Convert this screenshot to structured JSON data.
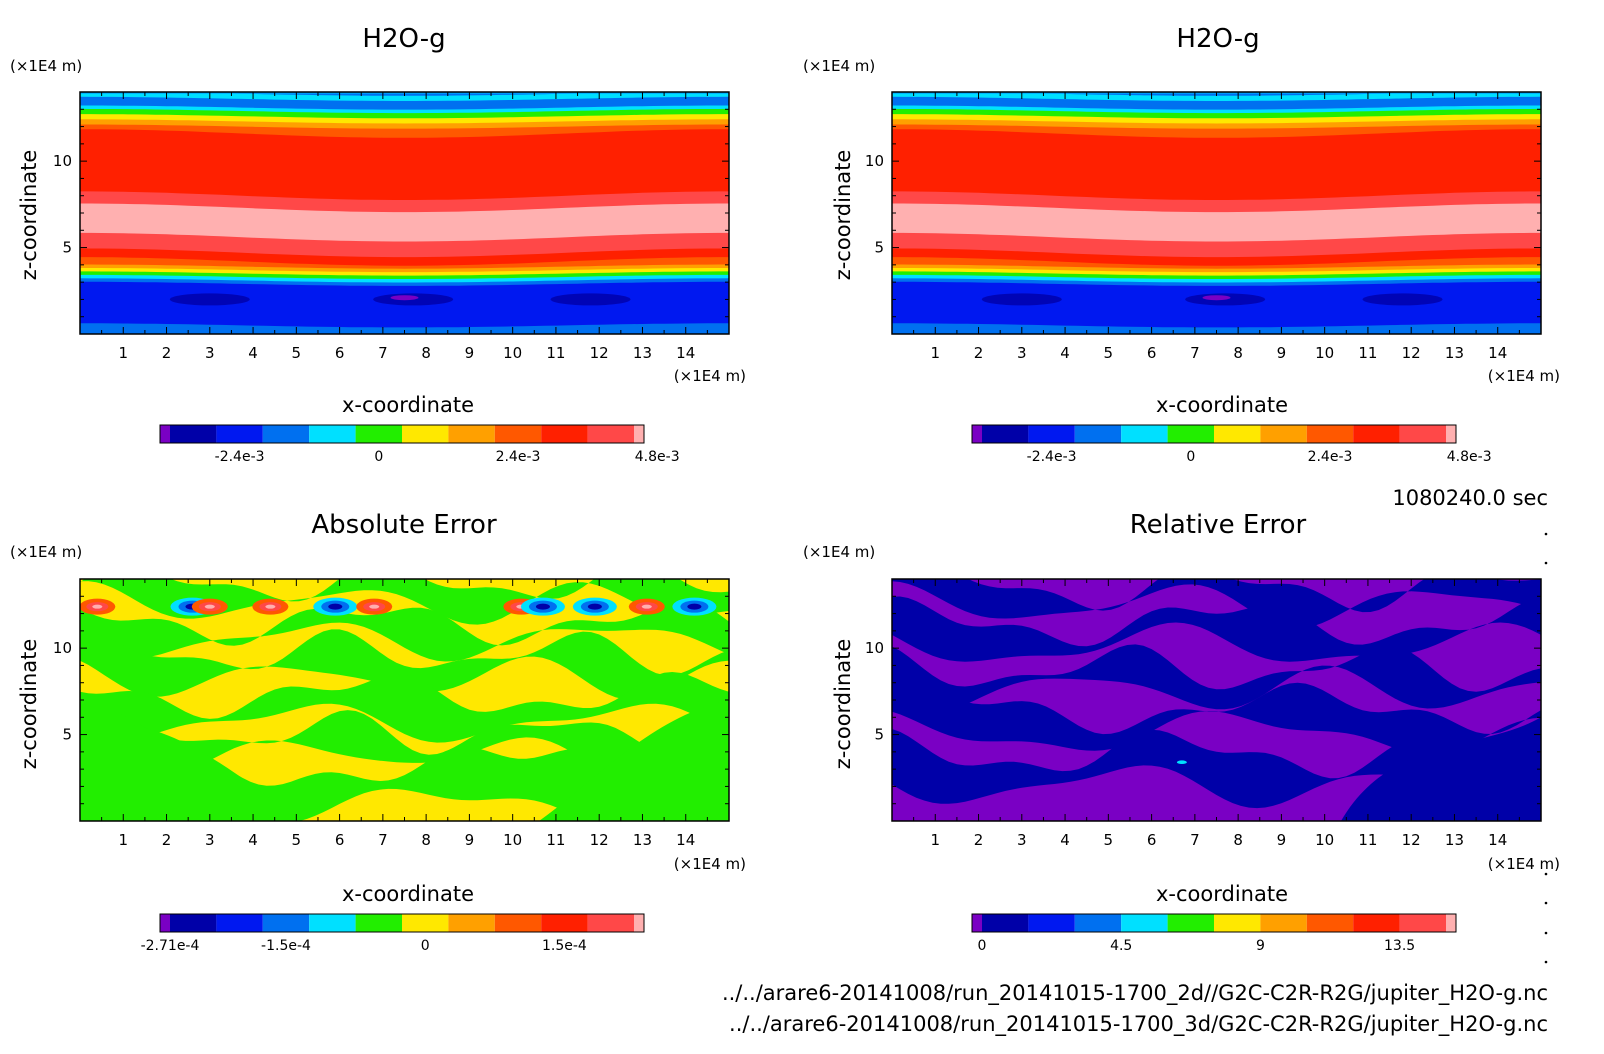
{
  "chart_data": [
    {
      "type": "heatmap",
      "title": "H2O-g",
      "xlabel": "x-coordinate",
      "ylabel": "z-coordinate",
      "x_unit": "(×1E4 m)",
      "y_unit": "(×1E4 m)",
      "xlim": [
        0,
        15
      ],
      "ylim": [
        0,
        14
      ],
      "x_ticks": [
        1,
        2,
        3,
        4,
        5,
        6,
        7,
        8,
        9,
        10,
        11,
        12,
        13,
        14
      ],
      "y_ticks": [
        5,
        10
      ],
      "pattern": "layers",
      "colorbar_ticks": [
        "-2.4e-3",
        "0",
        "2.4e-3",
        "4.8e-3"
      ],
      "colorbar_tick_pos": [
        1.5,
        4.5,
        7.5,
        10.5
      ]
    },
    {
      "type": "heatmap",
      "title": "H2O-g",
      "xlabel": "x-coordinate",
      "ylabel": "z-coordinate",
      "x_unit": "(×1E4 m)",
      "y_unit": "(×1E4 m)",
      "xlim": [
        0,
        15
      ],
      "ylim": [
        0,
        14
      ],
      "x_ticks": [
        1,
        2,
        3,
        4,
        5,
        6,
        7,
        8,
        9,
        10,
        11,
        12,
        13,
        14
      ],
      "y_ticks": [
        5,
        10
      ],
      "pattern": "layers",
      "colorbar_ticks": [
        "-2.4e-3",
        "0",
        "2.4e-3",
        "4.8e-3"
      ],
      "colorbar_tick_pos": [
        1.5,
        4.5,
        7.5,
        10.5
      ]
    },
    {
      "type": "heatmap",
      "title": "Absolute Error",
      "xlabel": "x-coordinate",
      "ylabel": "z-coordinate",
      "x_unit": "(×1E4 m)",
      "y_unit": "(×1E4 m)",
      "xlim": [
        0,
        15
      ],
      "ylim": [
        0,
        14
      ],
      "x_ticks": [
        1,
        2,
        3,
        4,
        5,
        6,
        7,
        8,
        9,
        10,
        11,
        12,
        13,
        14
      ],
      "y_ticks": [
        5,
        10
      ],
      "pattern": "abs_error",
      "colorbar_ticks": [
        "-2.71e-4",
        "-1.5e-4",
        "0",
        "1.5e-4"
      ],
      "colorbar_tick_pos": [
        0,
        2.5,
        5.5,
        8.5
      ]
    },
    {
      "type": "heatmap",
      "title": "Relative Error",
      "xlabel": "x-coordinate",
      "ylabel": "z-coordinate",
      "x_unit": "(×1E4 m)",
      "y_unit": "(×1E4 m)",
      "xlim": [
        0,
        15
      ],
      "ylim": [
        0,
        14
      ],
      "x_ticks": [
        1,
        2,
        3,
        4,
        5,
        6,
        7,
        8,
        9,
        10,
        11,
        12,
        13,
        14
      ],
      "y_ticks": [
        5,
        10
      ],
      "pattern": "rel_error",
      "colorbar_ticks": [
        "0",
        "4.5",
        "9",
        "13.5"
      ],
      "colorbar_tick_pos": [
        0,
        3,
        6,
        9
      ]
    }
  ],
  "colors": {
    "scale": [
      "#7a00c4",
      "#0000a8",
      "#0018f0",
      "#0070f0",
      "#00e0ff",
      "#22ee00",
      "#ffe800",
      "#ffa000",
      "#ff5800",
      "#ff2000",
      "#ff4848",
      "#ffb0b0"
    ]
  },
  "time_label": "1080240.0 sec",
  "footer": {
    "line1": "../../arare6-20141008/run_20141015-1700_2d//G2C-C2R-R2G/jupiter_H2O-g.nc",
    "line2": "../../arare6-20141008/run_20141015-1700_3d/G2C-C2R-R2G/jupiter_H2O-g.nc"
  }
}
